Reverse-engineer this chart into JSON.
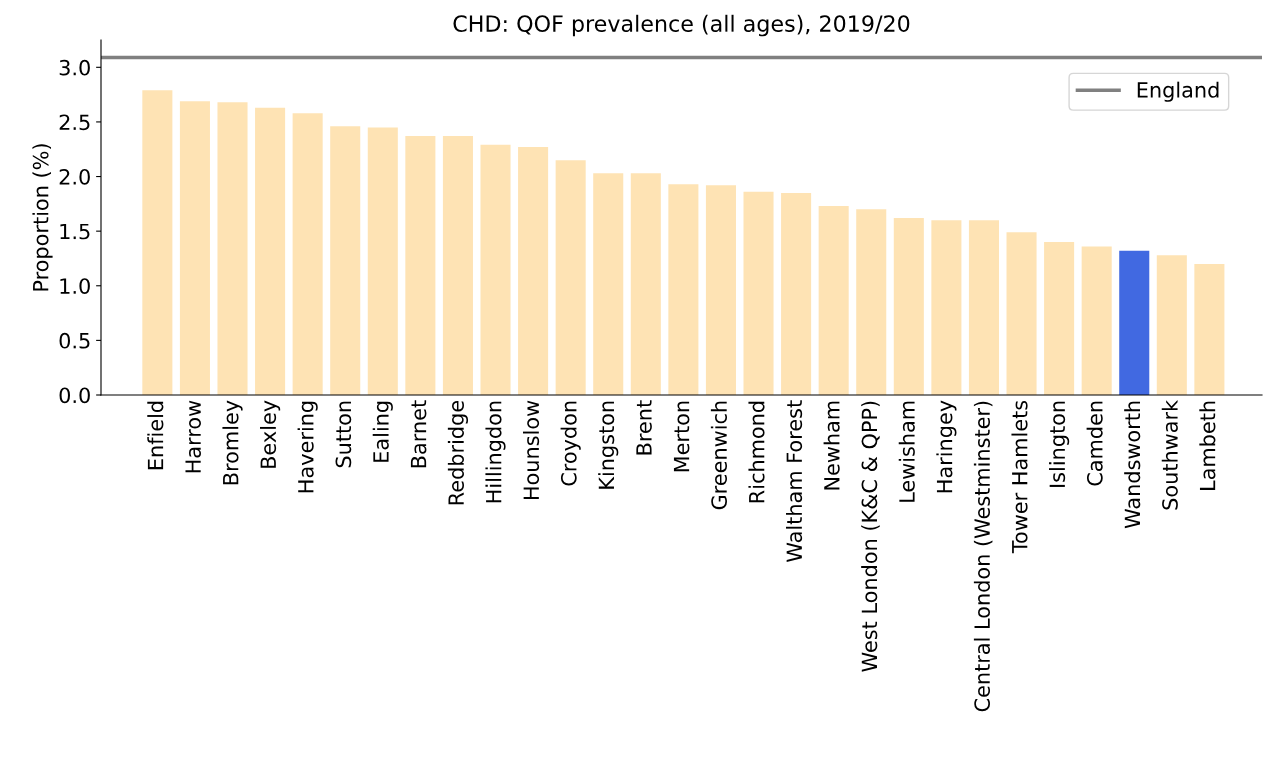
{
  "chart_data": {
    "type": "bar",
    "title": "CHD: QOF prevalence (all ages), 2019/20",
    "ylabel": "Proportion (%)",
    "categories": [
      "Enfield",
      "Harrow",
      "Bromley",
      "Bexley",
      "Havering",
      "Sutton",
      "Ealing",
      "Barnet",
      "Redbridge",
      "Hillingdon",
      "Hounslow",
      "Croydon",
      "Kingston",
      "Brent",
      "Merton",
      "Greenwich",
      "Richmond",
      "Waltham Forest",
      "Newham",
      "West London (K&C & QPP)",
      "Lewisham",
      "Haringey",
      "Central London (Westminster)",
      "Tower Hamlets",
      "Islington",
      "Camden",
      "Wandsworth",
      "Southwark",
      "Lambeth"
    ],
    "values": [
      2.79,
      2.69,
      2.68,
      2.63,
      2.58,
      2.46,
      2.45,
      2.37,
      2.37,
      2.29,
      2.27,
      2.15,
      2.03,
      2.03,
      1.93,
      1.92,
      1.86,
      1.85,
      1.73,
      1.7,
      1.62,
      1.6,
      1.6,
      1.49,
      1.4,
      1.36,
      1.32,
      1.28,
      1.2
    ],
    "colors": [
      "#fee3b4",
      "#fee3b4",
      "#fee3b4",
      "#fee3b4",
      "#fee3b4",
      "#fee3b4",
      "#fee3b4",
      "#fee3b4",
      "#fee3b4",
      "#fee3b4",
      "#fee3b4",
      "#fee3b4",
      "#fee3b4",
      "#fee3b4",
      "#fee3b4",
      "#fee3b4",
      "#fee3b4",
      "#fee3b4",
      "#fee3b4",
      "#fee3b4",
      "#fee3b4",
      "#fee3b4",
      "#fee3b4",
      "#fee3b4",
      "#fee3b4",
      "#fee3b4",
      "#4169e1",
      "#fee3b4",
      "#fee3b4"
    ],
    "ylim": [
      0,
      3.25
    ],
    "yticks": [
      {
        "value": 0,
        "label": "0.0"
      },
      {
        "value": 0.5,
        "label": "0.5"
      },
      {
        "value": 1,
        "label": "1.0"
      },
      {
        "value": 1.5,
        "label": "1.5"
      },
      {
        "value": 2,
        "label": "2.0"
      },
      {
        "value": 2.5,
        "label": "2.5"
      },
      {
        "value": 3,
        "label": "3.0"
      }
    ],
    "ref_lines": [
      {
        "axis": "y",
        "value": 3.09,
        "label": "England",
        "color": "#808080"
      }
    ],
    "grid": false,
    "legend": "top right"
  }
}
